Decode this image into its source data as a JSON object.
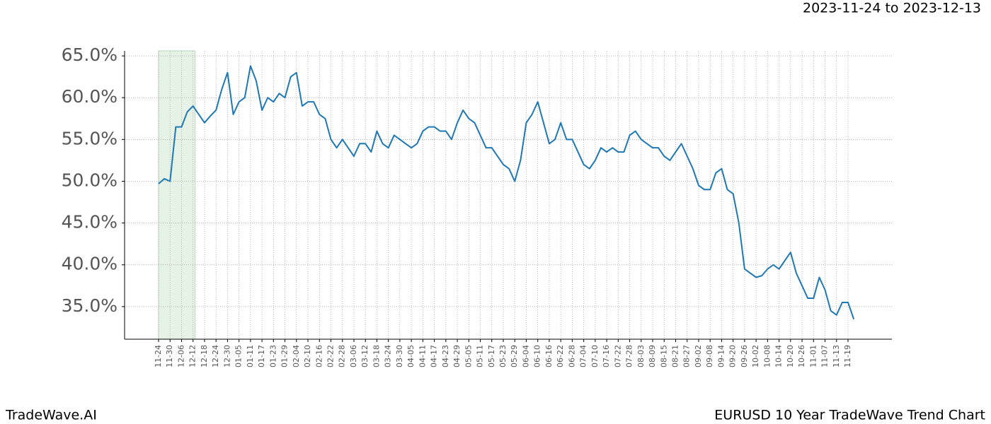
{
  "chart_data": {
    "type": "line",
    "subtitle": "2023-11-24 to 2023-12-13",
    "footer_left": "TradeWave.AI",
    "footer_right": "EURUSD 10 Year TradeWave Trend Chart",
    "categories": [
      "11-24",
      null,
      "11-30",
      null,
      "12-06",
      null,
      "12-12",
      null,
      "12-18",
      null,
      "12-24",
      null,
      "12-30",
      null,
      "01-05",
      null,
      "01-11",
      null,
      "01-17",
      null,
      "01-23",
      null,
      "01-29",
      null,
      "02-04",
      null,
      "02-10",
      null,
      "02-16",
      null,
      "02-22",
      null,
      "02-28",
      null,
      "03-06",
      null,
      "03-12",
      null,
      "03-18",
      null,
      "03-24",
      null,
      "03-30",
      null,
      "04-05",
      null,
      "04-11",
      null,
      "04-17",
      null,
      "04-23",
      null,
      "04-29",
      null,
      "05-05",
      null,
      "05-11",
      null,
      "05-17",
      null,
      "05-23",
      null,
      "05-29",
      null,
      "06-04",
      null,
      "06-10",
      null,
      "06-16",
      null,
      "06-22",
      null,
      "06-28",
      null,
      "07-04",
      null,
      "07-10",
      null,
      "07-16",
      null,
      "07-22",
      null,
      "07-28",
      null,
      "08-03",
      null,
      "08-09",
      null,
      "08-15",
      null,
      "08-21",
      null,
      "08-27",
      null,
      "09-02",
      null,
      "09-08",
      null,
      "09-14",
      null,
      "09-20",
      null,
      "09-26",
      null,
      "10-02",
      null,
      "10-08",
      null,
      "10-14",
      null,
      "10-20",
      null,
      "10-26",
      null,
      "11-01",
      null,
      "11-07",
      null,
      "11-13",
      null,
      "11-19",
      null
    ],
    "values": [
      49.7,
      50.3,
      50.0,
      56.5,
      56.5,
      58.3,
      59.0,
      58.0,
      57.0,
      57.8,
      58.5,
      61.0,
      63.0,
      58.0,
      59.5,
      60.0,
      63.8,
      62.0,
      58.5,
      60.0,
      59.5,
      60.5,
      60.0,
      62.5,
      63.0,
      59.0,
      59.5,
      59.5,
      58.0,
      57.5,
      55.0,
      54.0,
      55.0,
      54.0,
      53.0,
      54.5,
      54.5,
      53.5,
      56.0,
      54.5,
      54.0,
      55.5,
      55.0,
      54.5,
      54.0,
      54.5,
      56.0,
      56.5,
      56.5,
      56.0,
      56.0,
      55.0,
      57.0,
      58.5,
      57.5,
      57.0,
      55.5,
      54.0,
      54.0,
      53.0,
      52.0,
      51.5,
      50.0,
      52.5,
      57.0,
      58.0,
      59.5,
      57.0,
      54.5,
      55.0,
      57.0,
      55.0,
      55.0,
      53.5,
      52.0,
      51.5,
      52.5,
      54.0,
      53.5,
      54.0,
      53.5,
      53.5,
      55.5,
      56.0,
      55.0,
      54.5,
      54.0,
      54.0,
      53.0,
      52.5,
      53.5,
      54.5,
      53.0,
      51.5,
      49.5,
      49.0,
      49.0,
      51.0,
      51.5,
      49.0,
      48.5,
      45.0,
      39.5,
      39.0,
      38.5,
      38.7,
      39.5,
      40.0,
      39.5,
      40.5,
      41.5,
      39.0,
      37.5,
      36.0,
      36.0,
      38.5,
      37.0,
      34.5,
      34.0,
      35.5,
      35.5,
      33.5
    ],
    "color": "#1f77b4",
    "shade": [
      "11-24",
      "12-12"
    ],
    "shade_color": "#e6f2e6",
    "ylim": [
      31.1,
      65.6
    ],
    "yticks": [
      {
        "value": 35,
        "label": "35.0%"
      },
      {
        "value": 40,
        "label": "40.0%"
      },
      {
        "value": 45,
        "label": "45.0%"
      },
      {
        "value": 50,
        "label": "50.0%"
      },
      {
        "value": 55,
        "label": "55.0%"
      },
      {
        "value": 60,
        "label": "60.0%"
      },
      {
        "value": 65,
        "label": "65.0%"
      }
    ],
    "grid": true
  }
}
